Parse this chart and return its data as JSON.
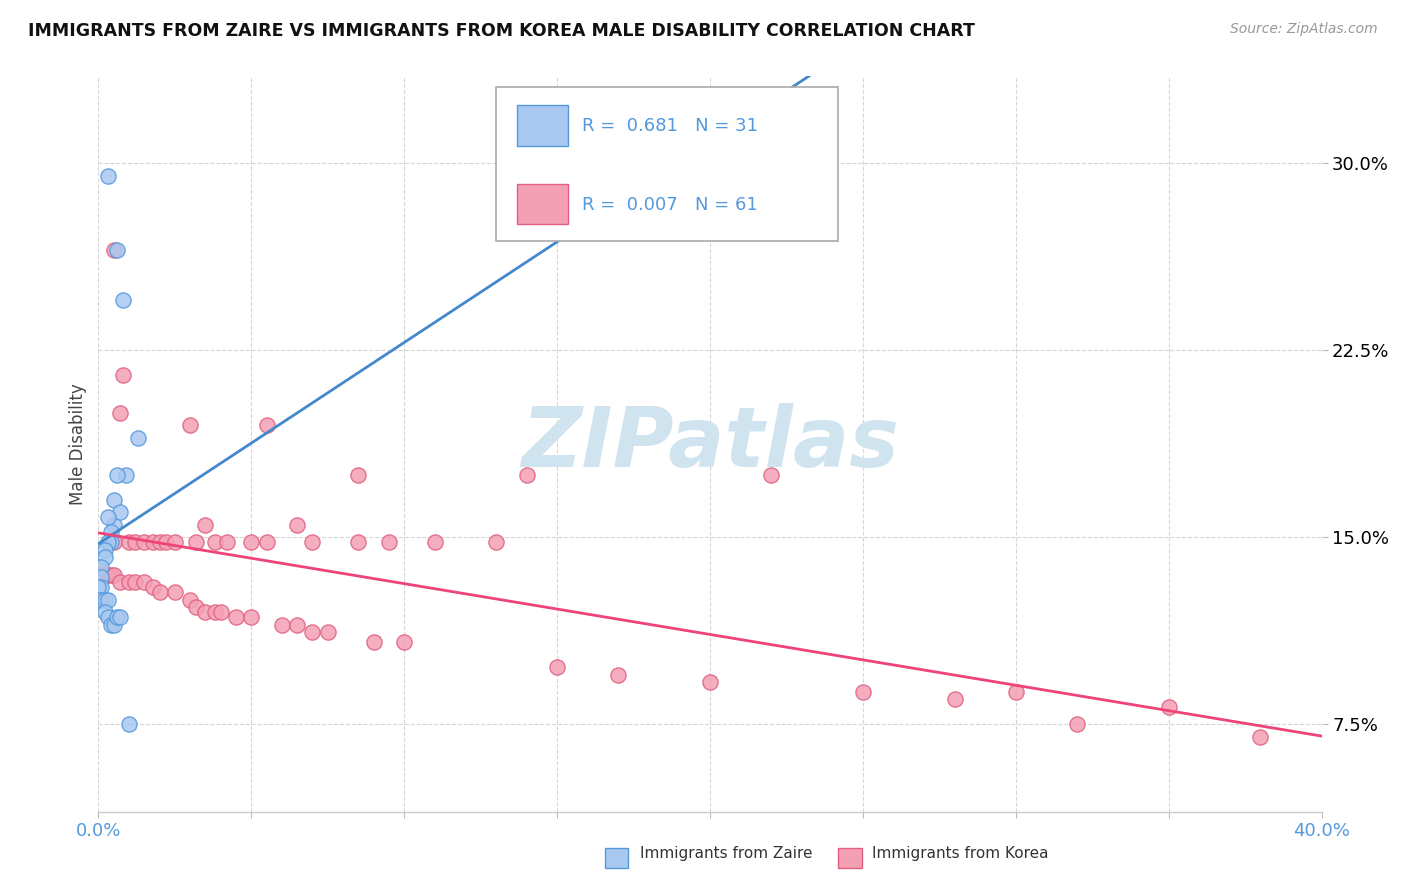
{
  "title": "IMMIGRANTS FROM ZAIRE VS IMMIGRANTS FROM KOREA MALE DISABILITY CORRELATION CHART",
  "source": "Source: ZipAtlas.com",
  "ylabel": "Male Disability",
  "ytick_vals": [
    0.075,
    0.15,
    0.225,
    0.3
  ],
  "xlim": [
    0.0,
    0.4
  ],
  "ylim": [
    0.04,
    0.335
  ],
  "color_zaire_fill": "#a8c8f0",
  "color_zaire_edge": "#5599dd",
  "color_korea_fill": "#f4a0b4",
  "color_korea_edge": "#e06080",
  "color_zaire_line": "#4488cc",
  "color_korea_line": "#ee4477",
  "color_text_blue": "#5599dd",
  "watermark_color": "#d0e4f0",
  "zaire_points": [
    [
      0.003,
      0.295
    ],
    [
      0.008,
      0.245
    ],
    [
      0.006,
      0.265
    ],
    [
      0.013,
      0.19
    ],
    [
      0.005,
      0.155
    ],
    [
      0.005,
      0.165
    ],
    [
      0.007,
      0.16
    ],
    [
      0.009,
      0.175
    ],
    [
      0.006,
      0.175
    ],
    [
      0.003,
      0.158
    ],
    [
      0.004,
      0.152
    ],
    [
      0.004,
      0.148
    ],
    [
      0.003,
      0.148
    ],
    [
      0.002,
      0.145
    ],
    [
      0.002,
      0.142
    ],
    [
      0.001,
      0.138
    ],
    [
      0.001,
      0.134
    ],
    [
      0.001,
      0.13
    ],
    [
      0.0,
      0.13
    ],
    [
      0.0,
      0.125
    ],
    [
      0.001,
      0.125
    ],
    [
      0.002,
      0.125
    ],
    [
      0.003,
      0.125
    ],
    [
      0.002,
      0.12
    ],
    [
      0.003,
      0.118
    ],
    [
      0.004,
      0.115
    ],
    [
      0.005,
      0.115
    ],
    [
      0.006,
      0.118
    ],
    [
      0.007,
      0.118
    ],
    [
      0.01,
      0.075
    ],
    [
      0.17,
      0.28
    ]
  ],
  "korea_points": [
    [
      0.005,
      0.265
    ],
    [
      0.008,
      0.215
    ],
    [
      0.007,
      0.2
    ],
    [
      0.03,
      0.195
    ],
    [
      0.055,
      0.195
    ],
    [
      0.085,
      0.175
    ],
    [
      0.14,
      0.175
    ],
    [
      0.22,
      0.175
    ],
    [
      0.035,
      0.155
    ],
    [
      0.065,
      0.155
    ],
    [
      0.005,
      0.148
    ],
    [
      0.01,
      0.148
    ],
    [
      0.012,
      0.148
    ],
    [
      0.015,
      0.148
    ],
    [
      0.018,
      0.148
    ],
    [
      0.02,
      0.148
    ],
    [
      0.022,
      0.148
    ],
    [
      0.025,
      0.148
    ],
    [
      0.032,
      0.148
    ],
    [
      0.038,
      0.148
    ],
    [
      0.042,
      0.148
    ],
    [
      0.05,
      0.148
    ],
    [
      0.055,
      0.148
    ],
    [
      0.07,
      0.148
    ],
    [
      0.085,
      0.148
    ],
    [
      0.095,
      0.148
    ],
    [
      0.11,
      0.148
    ],
    [
      0.13,
      0.148
    ],
    [
      0.0,
      0.138
    ],
    [
      0.001,
      0.135
    ],
    [
      0.003,
      0.135
    ],
    [
      0.004,
      0.135
    ],
    [
      0.005,
      0.135
    ],
    [
      0.007,
      0.132
    ],
    [
      0.01,
      0.132
    ],
    [
      0.012,
      0.132
    ],
    [
      0.015,
      0.132
    ],
    [
      0.018,
      0.13
    ],
    [
      0.02,
      0.128
    ],
    [
      0.025,
      0.128
    ],
    [
      0.03,
      0.125
    ],
    [
      0.032,
      0.122
    ],
    [
      0.035,
      0.12
    ],
    [
      0.038,
      0.12
    ],
    [
      0.04,
      0.12
    ],
    [
      0.045,
      0.118
    ],
    [
      0.05,
      0.118
    ],
    [
      0.06,
      0.115
    ],
    [
      0.065,
      0.115
    ],
    [
      0.07,
      0.112
    ],
    [
      0.075,
      0.112
    ],
    [
      0.09,
      0.108
    ],
    [
      0.1,
      0.108
    ],
    [
      0.15,
      0.098
    ],
    [
      0.17,
      0.095
    ],
    [
      0.25,
      0.088
    ],
    [
      0.3,
      0.088
    ],
    [
      0.35,
      0.082
    ],
    [
      0.32,
      0.075
    ],
    [
      0.38,
      0.07
    ],
    [
      0.2,
      0.092
    ],
    [
      0.28,
      0.085
    ]
  ]
}
